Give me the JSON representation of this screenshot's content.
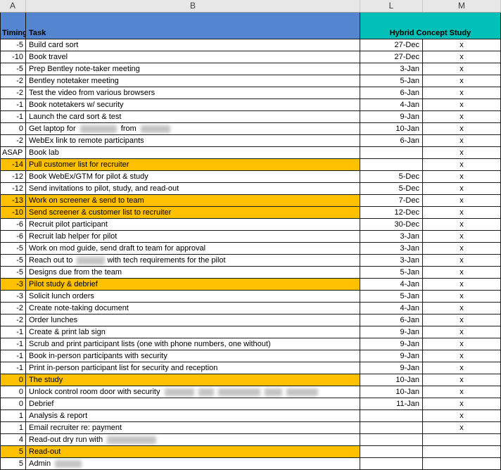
{
  "app": {
    "title": "Hybrid Concept Study planning spreadsheet"
  },
  "colors": {
    "header_blue": "#5385d0",
    "header_teal": "#00c0b7",
    "highlight_yellow": "#ffc000"
  },
  "column_strip": {
    "labels": [
      "A",
      "B",
      "L",
      "M"
    ]
  },
  "header": {
    "timing_label": "Timing",
    "task_label": "Task",
    "study_label": "Hybrid Concept Study"
  },
  "rows": [
    {
      "timing": "-5",
      "task": "Build card sort",
      "date": "27-Dec",
      "mark": "x",
      "highlight": false
    },
    {
      "timing": "-10",
      "task": "Book travel",
      "date": "27-Dec",
      "mark": "x",
      "highlight": false
    },
    {
      "timing": "-5",
      "task": "Prep Bentley note-taker meeting",
      "date": "3-Jan",
      "mark": "x",
      "highlight": false
    },
    {
      "timing": "-2",
      "task": "Bentley notetaker meeting",
      "date": "5-Jan",
      "mark": "x",
      "highlight": false
    },
    {
      "timing": "-2",
      "task": "Test the video from various browsers",
      "date": "6-Jan",
      "mark": "x",
      "highlight": false
    },
    {
      "timing": "-1",
      "task": "Book notetakers w/ security",
      "date": "4-Jan",
      "mark": "x",
      "highlight": false
    },
    {
      "timing": "-1",
      "task": "Launch the card sort & test",
      "date": "9-Jan",
      "mark": "x",
      "highlight": false
    },
    {
      "timing": "0",
      "task_parts": [
        {
          "text": "Get laptop for "
        },
        {
          "redacted": 52
        },
        {
          "text": " from "
        },
        {
          "redacted": 42
        }
      ],
      "date": "10-Jan",
      "mark": "x",
      "highlight": false
    },
    {
      "timing": "-2",
      "task": "WebEx link to remote participants",
      "date": "6-Jan",
      "mark": "x",
      "highlight": false
    },
    {
      "timing": "ASAP",
      "task": "Book lab",
      "date": "",
      "mark": "x",
      "highlight": false
    },
    {
      "timing": "-14",
      "task": "Pull customer list for recruiter",
      "date": "",
      "mark": "x",
      "highlight": true
    },
    {
      "timing": "-12",
      "task": "Book WebEx/GTM for pilot & study",
      "date": "5-Dec",
      "mark": "x",
      "highlight": false
    },
    {
      "timing": "-12",
      "task": "Send invitations to pilot, study, and read-out",
      "date": "5-Dec",
      "mark": "x",
      "highlight": false
    },
    {
      "timing": "-13",
      "task": "Work on screener & send to team",
      "date": "7-Dec",
      "mark": "x",
      "highlight": true
    },
    {
      "timing": "-10",
      "task": "Send screener & customer list to recruiter",
      "date": "12-Dec",
      "mark": "x",
      "highlight": true
    },
    {
      "timing": "-6",
      "task": "Recruit pilot participant",
      "date": "30-Dec",
      "mark": "x",
      "highlight": false
    },
    {
      "timing": "-6",
      "task": "Recruit lab helper for pilot",
      "date": "3-Jan",
      "mark": "x",
      "highlight": false
    },
    {
      "timing": "-5",
      "task": "Work on mod guide, send draft to team for approval",
      "date": "3-Jan",
      "mark": "x",
      "highlight": false
    },
    {
      "timing": "-5",
      "task_parts": [
        {
          "text": "Reach out to "
        },
        {
          "redacted": 40
        },
        {
          "text": "with tech requirements for the pilot"
        }
      ],
      "date": "3-Jan",
      "mark": "x",
      "highlight": false
    },
    {
      "timing": "-5",
      "task": "Designs due from the team",
      "date": "5-Jan",
      "mark": "x",
      "highlight": false
    },
    {
      "timing": "-3",
      "task": "Pilot study & debrief",
      "date": "4-Jan",
      "mark": "x",
      "highlight": true
    },
    {
      "timing": "-3",
      "task": "Solicit lunch orders",
      "date": "5-Jan",
      "mark": "x",
      "highlight": false
    },
    {
      "timing": "-2",
      "task": "Create note-taking document",
      "date": "4-Jan",
      "mark": "x",
      "highlight": false
    },
    {
      "timing": "-2",
      "task": "Order lunches",
      "date": "6-Jan",
      "mark": "x",
      "highlight": false
    },
    {
      "timing": "-1",
      "task": "Create & print lab sign",
      "date": "9-Jan",
      "mark": "x",
      "highlight": false
    },
    {
      "timing": "-1",
      "task": "Scrub and print participant lists (one with phone numbers, one without)",
      "date": "9-Jan",
      "mark": "x",
      "highlight": false
    },
    {
      "timing": "-1",
      "task": "Book in-person participants with security",
      "date": "9-Jan",
      "mark": "x",
      "highlight": false
    },
    {
      "timing": "-1",
      "task": "Print in-person participant list for security and reception",
      "date": "9-Jan",
      "mark": "x",
      "highlight": false
    },
    {
      "timing": "0",
      "task": "The study",
      "date": "10-Jan",
      "mark": "x",
      "highlight": true
    },
    {
      "timing": "0",
      "task_parts": [
        {
          "text": "Unlock control room door with security "
        },
        {
          "redacted": 42
        },
        {
          "redacted": 22
        },
        {
          "redacted": 60
        },
        {
          "redacted": 25
        },
        {
          "redacted": 45
        }
      ],
      "date": "10-Jan",
      "mark": "x",
      "highlight": false
    },
    {
      "timing": "0",
      "task": "Debrief",
      "date": "11-Jan",
      "mark": "x",
      "highlight": false
    },
    {
      "timing": "1",
      "task": "Analysis & report",
      "date": "",
      "mark": "x",
      "highlight": false
    },
    {
      "timing": "1",
      "task": "Email recruiter re: payment",
      "date": "",
      "mark": "x",
      "highlight": false
    },
    {
      "timing": "4",
      "task_parts": [
        {
          "text": "Read-out dry run with "
        },
        {
          "redacted": 70
        }
      ],
      "date": "",
      "mark": "",
      "highlight": false
    },
    {
      "timing": "5",
      "task": "Read-out",
      "date": "",
      "mark": "",
      "highlight": true
    },
    {
      "timing": "5",
      "task_parts": [
        {
          "text": "Admin "
        },
        {
          "redacted": 38
        }
      ],
      "date": "",
      "mark": "",
      "highlight": false
    }
  ]
}
